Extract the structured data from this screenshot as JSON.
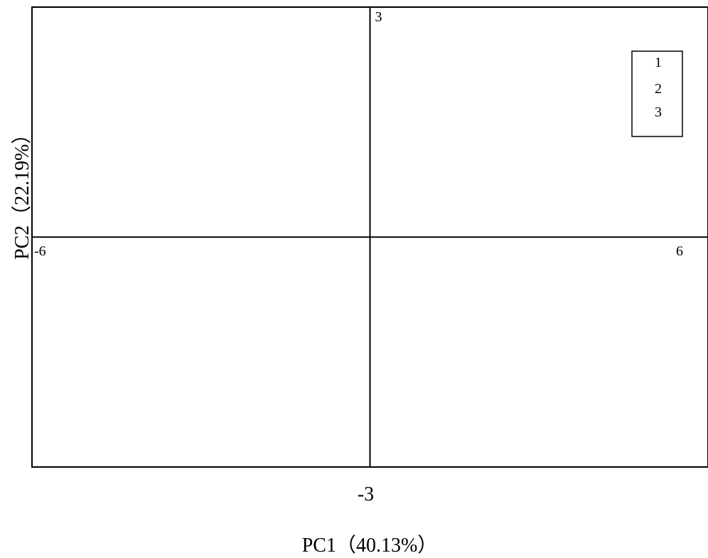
{
  "chart_data": {
    "type": "scatter",
    "title": "",
    "xlabel": "PC1（40.13%）",
    "ylabel": "PC2（22.19%）",
    "xlim": [
      -6,
      6
    ],
    "ylim": [
      -3,
      3
    ],
    "x_ticks": [
      {
        "value": -6,
        "label": "-6"
      },
      {
        "value": 6,
        "label": "6"
      }
    ],
    "y_ticks": [
      {
        "value": 3,
        "label": "3"
      },
      {
        "value": -3,
        "label": "-3"
      }
    ],
    "legend": {
      "position": "top-right",
      "entries": [
        "1",
        "2",
        "3"
      ]
    },
    "series": [
      {
        "name": "1",
        "points": []
      },
      {
        "name": "2",
        "points": []
      },
      {
        "name": "3",
        "points": []
      }
    ],
    "grid": false,
    "axes_through_origin": true
  }
}
